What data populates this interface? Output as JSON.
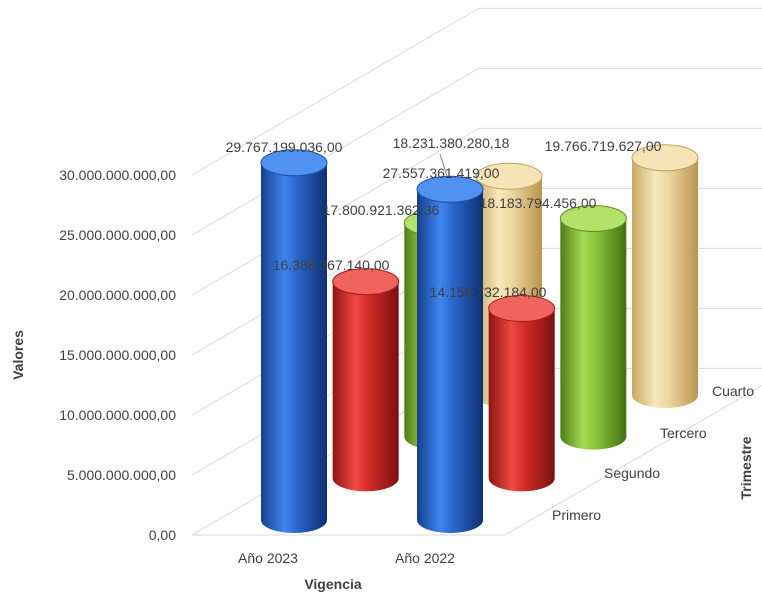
{
  "chart_data": {
    "type": "bar",
    "subtype": "3d-cylinder",
    "xlabel": "Vigencia",
    "ylabel": "Valores",
    "zlabel": "Trimestre",
    "categories": [
      "Año 2023",
      "Año 2022"
    ],
    "ylim": [
      0,
      30000000000
    ],
    "yticks": [
      "0,00",
      "5.000.000.000,00",
      "10.000.000.000,00",
      "15.000.000.000,00",
      "20.000.000.000,00",
      "25.000.000.000,00",
      "30.000.000.000,00"
    ],
    "grid": true,
    "series": [
      {
        "name": "Primero",
        "values": [
          29767199036.0,
          27557361419.0
        ],
        "labels": [
          "29.767.199.036,00",
          "27.557.361.419,00"
        ],
        "color": "#2f6fd6"
      },
      {
        "name": "Segundo",
        "values": [
          16388367140.0,
          14150732184.0
        ],
        "labels": [
          "16.388.367.140,00",
          "14.150.732.184,00"
        ],
        "color": "#d9302c"
      },
      {
        "name": "Tercero",
        "values": [
          17800921362.36,
          18183794456.0
        ],
        "labels": [
          "17.800.921.362,36",
          "18.183.794.456,00"
        ],
        "color": "#8cc63f"
      },
      {
        "name": "Cuarto",
        "values": [
          18231380280.18,
          19766719627.0
        ],
        "labels": [
          "18.231.380.280,18",
          "19.766.719.627,00"
        ],
        "color": "#e8d39a"
      }
    ]
  }
}
